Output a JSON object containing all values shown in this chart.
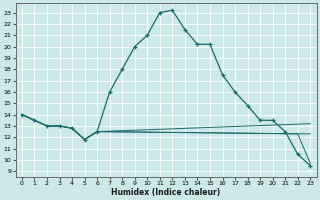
{
  "xlabel": "Humidex (Indice chaleur)",
  "bg_color": "#cce8e8",
  "grid_color": "#ffffff",
  "line_color": "#1a6b6b",
  "xlim": [
    -0.5,
    23.5
  ],
  "ylim": [
    8.5,
    23.8
  ],
  "yticks": [
    9,
    10,
    11,
    12,
    13,
    14,
    15,
    16,
    17,
    18,
    19,
    20,
    21,
    22,
    23
  ],
  "xticks": [
    0,
    1,
    2,
    3,
    4,
    5,
    6,
    7,
    8,
    9,
    10,
    11,
    12,
    13,
    14,
    15,
    16,
    17,
    18,
    19,
    20,
    21,
    22,
    23
  ],
  "line1_x": [
    0,
    1,
    2,
    3,
    4,
    5,
    6,
    7,
    8,
    9,
    10,
    11,
    12,
    13,
    14,
    15,
    16,
    17,
    18,
    19,
    20,
    21,
    22,
    23
  ],
  "line1_y": [
    14,
    13.5,
    13,
    13,
    12.8,
    11.8,
    12.5,
    16,
    18,
    20,
    21,
    23,
    23.2,
    21.5,
    20.2,
    20.2,
    17.5,
    16,
    14.8,
    13.5,
    13.5,
    12.5,
    10.5,
    9.5
  ],
  "line2_x": [
    0,
    1,
    2,
    3,
    4,
    5,
    6,
    23
  ],
  "line2_y": [
    14,
    13.5,
    13,
    13,
    12.8,
    11.8,
    12.5,
    13.2
  ],
  "line3_x": [
    0,
    1,
    2,
    3,
    4,
    5,
    6,
    23
  ],
  "line3_y": [
    14,
    13.5,
    13,
    13,
    12.8,
    11.8,
    12.5,
    12.3
  ],
  "line4_x": [
    0,
    1,
    2,
    3,
    4,
    5,
    6,
    22,
    23
  ],
  "line4_y": [
    14,
    13.5,
    13,
    13,
    12.8,
    11.8,
    12.5,
    12.3,
    9.7
  ]
}
